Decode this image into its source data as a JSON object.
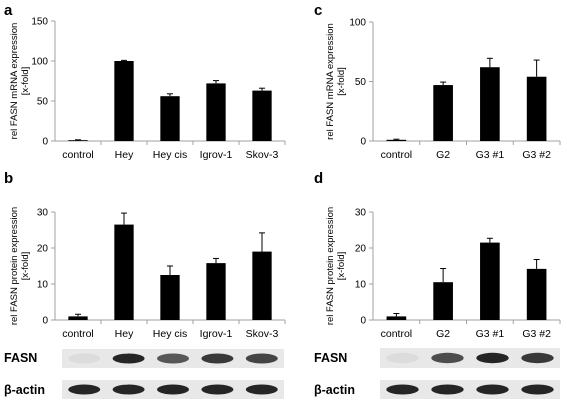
{
  "chart_data": [
    {
      "panel": "a",
      "type": "bar",
      "categories": [
        "control",
        "Hey",
        "Hey cis",
        "Igrov-1",
        "Skov-3"
      ],
      "values": [
        1,
        100,
        56,
        72,
        63
      ],
      "errors": [
        0.5,
        0.8,
        3,
        3.5,
        3
      ],
      "ylabel": "rel FASN mRNA expression",
      "ylabel2": "[x-fold]",
      "ylim": [
        0,
        150
      ],
      "yticks": [
        0,
        50,
        100,
        150
      ],
      "grid": false
    },
    {
      "panel": "b",
      "type": "bar",
      "categories": [
        "control",
        "Hey",
        "Hey cis",
        "Igrov-1",
        "Skov-3"
      ],
      "values": [
        1,
        26.5,
        12.5,
        15.8,
        19
      ],
      "errors": [
        0.6,
        3.2,
        2.5,
        1.3,
        5.2
      ],
      "ylabel": "rel FASN protein expression",
      "ylabel2": "[x-fold]",
      "ylim": [
        0,
        30
      ],
      "yticks": [
        0,
        10,
        20,
        30
      ],
      "grid": false,
      "blot_rows": [
        "FASN",
        "β-actin"
      ]
    },
    {
      "panel": "c",
      "type": "bar",
      "categories": [
        "control",
        "G2",
        "G3 #1",
        "G3 #2"
      ],
      "values": [
        1,
        47,
        62,
        54
      ],
      "errors": [
        0.5,
        2.5,
        7.5,
        14
      ],
      "ylabel": "rel FASN mRNA expression",
      "ylabel2": "[x-fold]",
      "ylim": [
        0,
        100
      ],
      "yticks": [
        0,
        50,
        100
      ],
      "grid": false
    },
    {
      "panel": "d",
      "type": "bar",
      "categories": [
        "control",
        "G2",
        "G3 #1",
        "G3 #2"
      ],
      "values": [
        1,
        10.5,
        21.5,
        14.2
      ],
      "errors": [
        0.8,
        3.8,
        1.2,
        2.6
      ],
      "ylabel": "rel FASN protein expression",
      "ylabel2": "[x-fold]",
      "ylim": [
        0,
        30
      ],
      "yticks": [
        0,
        10,
        20,
        30
      ],
      "grid": false,
      "blot_rows": [
        "FASN",
        "β-actin"
      ]
    }
  ],
  "colors": {
    "bar": "#000000",
    "axis": "#a0a0a0",
    "blot_band": "#1a1a1a",
    "blot_bg": "#e8e8e8"
  }
}
